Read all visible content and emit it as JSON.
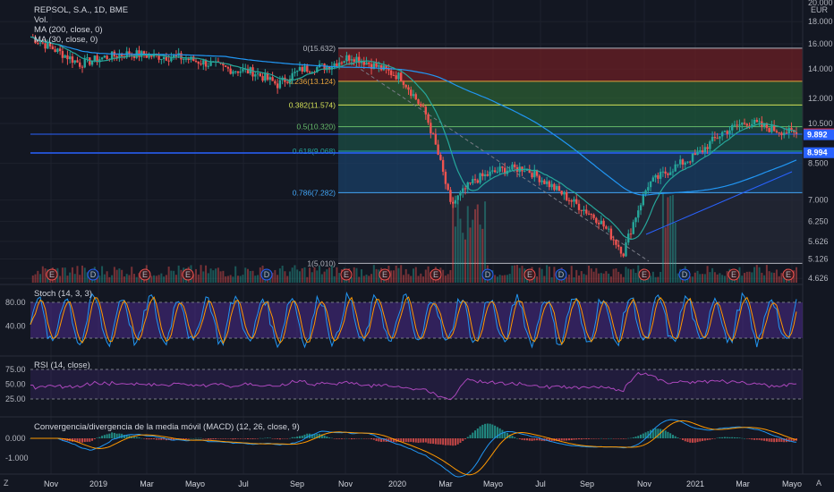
{
  "header": {
    "symbol": "REPSOL, S.A., 1D, BME",
    "vol_label": "Vol.",
    "ma1_label": "MA (200, close, 0)",
    "ma2_label": "MA (30, close, 0)"
  },
  "price_axis": {
    "currency_top": "20.000",
    "currency": "EUR",
    "ticks": [
      {
        "value": 18.0,
        "label": "18.000"
      },
      {
        "value": 16.0,
        "label": "16.000"
      },
      {
        "value": 14.0,
        "label": "14.000"
      },
      {
        "value": 12.0,
        "label": "12.000"
      },
      {
        "value": 10.5,
        "label": "10.500"
      },
      {
        "value": 8.5,
        "label": "8.500"
      },
      {
        "value": 7.0,
        "label": "7.000"
      },
      {
        "value": 6.25,
        "label": "6.250"
      },
      {
        "value": 5.626,
        "label": "5.626"
      },
      {
        "value": 5.126,
        "label": "5.126"
      },
      {
        "value": 4.626,
        "label": "4.626"
      }
    ],
    "tags": [
      {
        "value": 9.938,
        "label": "9.938",
        "color": "#f23645"
      },
      {
        "value": 9.892,
        "label": "9.892",
        "color": "#2962ff"
      },
      {
        "value": 8.994,
        "label": "8.994",
        "color": "#2962ff"
      }
    ]
  },
  "fibonacci": {
    "levels": [
      {
        "ratio": 0,
        "price": 15.632,
        "label": "0(15.632)",
        "color": "#b2b5be",
        "fill": "#6b1f24"
      },
      {
        "ratio": 0.236,
        "price": 13.124,
        "label": "0.236(13.124)",
        "color": "#e6a23c",
        "fill": "#2c5d33"
      },
      {
        "ratio": 0.382,
        "price": 11.574,
        "label": "0.382(11.574)",
        "color": "#d4e157",
        "fill": "#1d5a3c"
      },
      {
        "ratio": 0.5,
        "price": 10.32,
        "label": "0.5(10.320)",
        "color": "#66bb6a",
        "fill": "#1b4e44"
      },
      {
        "ratio": 0.618,
        "price": 9.068,
        "label": "0.618(9.068)",
        "color": "#26a69a",
        "fill": "#1a3f66"
      },
      {
        "ratio": 0.786,
        "price": 7.282,
        "label": "0.786(7.282)",
        "color": "#42a5f5",
        "fill": "#252a37"
      },
      {
        "ratio": 1,
        "price": 5.01,
        "label": "1(5.010)",
        "color": "#b2b5be",
        "fill": "none"
      }
    ]
  },
  "stoch": {
    "label": "Stoch (14, 3, 3)",
    "ticks": [
      {
        "value": 80,
        "label": "80.00"
      },
      {
        "value": 40,
        "label": "40.00"
      }
    ]
  },
  "rsi": {
    "label": "RSI (14, close)",
    "ticks": [
      {
        "value": 75,
        "label": "75.00"
      },
      {
        "value": 50,
        "label": "50.00"
      },
      {
        "value": 25,
        "label": "25.00"
      }
    ]
  },
  "macd": {
    "label": "Convergencia/divergencia de la media móvil (MACD) (12, 26, close, 9)",
    "ticks": [
      {
        "value": 0,
        "label": "0.000"
      },
      {
        "value": -1,
        "label": "-1.000"
      }
    ]
  },
  "time_axis": {
    "labels": [
      "Nov",
      "2019",
      "Mar",
      "Mayo",
      "Jul",
      "Sep",
      "Nov",
      "2020",
      "Mar",
      "Mayo",
      "Jul",
      "Sep",
      "Nov",
      "2021",
      "Mar",
      "Mayo"
    ]
  },
  "events": {
    "earnings_letter": "E",
    "dividend_letter": "D",
    "sequence": [
      "E",
      "D",
      "E",
      "E",
      "D",
      "E",
      "E",
      "E",
      "D",
      "E",
      "D",
      "E",
      "D",
      "E",
      "E"
    ]
  },
  "corner": {
    "left": "Z",
    "right": "A"
  },
  "chart_data": {
    "type": "line",
    "price_range": [
      4.626,
      20.0
    ],
    "price_scale": "log",
    "close_series": [
      {
        "date": "2018-10",
        "close": 16.6
      },
      {
        "date": "2018-11",
        "close": 15.5
      },
      {
        "date": "2018-12",
        "close": 14.4
      },
      {
        "date": "2019-01",
        "close": 14.9
      },
      {
        "date": "2019-02",
        "close": 15.2
      },
      {
        "date": "2019-03",
        "close": 15.0
      },
      {
        "date": "2019-04",
        "close": 14.9
      },
      {
        "date": "2019-05",
        "close": 14.5
      },
      {
        "date": "2019-06",
        "close": 14.0
      },
      {
        "date": "2019-07",
        "close": 13.8
      },
      {
        "date": "2019-08",
        "close": 12.9
      },
      {
        "date": "2019-09",
        "close": 14.0
      },
      {
        "date": "2019-10",
        "close": 14.2
      },
      {
        "date": "2019-11",
        "close": 15.0
      },
      {
        "date": "2019-12",
        "close": 14.2
      },
      {
        "date": "2020-01",
        "close": 13.4
      },
      {
        "date": "2020-02",
        "close": 11.0
      },
      {
        "date": "2020-03",
        "close": 6.8
      },
      {
        "date": "2020-04",
        "close": 7.8
      },
      {
        "date": "2020-05",
        "close": 8.2
      },
      {
        "date": "2020-06",
        "close": 8.3
      },
      {
        "date": "2020-07",
        "close": 7.6
      },
      {
        "date": "2020-08",
        "close": 6.9
      },
      {
        "date": "2020-09",
        "close": 6.3
      },
      {
        "date": "2020-10",
        "close": 5.3
      },
      {
        "date": "2020-11",
        "close": 7.6
      },
      {
        "date": "2020-12",
        "close": 8.3
      },
      {
        "date": "2021-01",
        "close": 8.9
      },
      {
        "date": "2021-02",
        "close": 10.0
      },
      {
        "date": "2021-03",
        "close": 10.6
      },
      {
        "date": "2021-04",
        "close": 10.2
      },
      {
        "date": "2021-05",
        "close": 9.94
      }
    ]
  }
}
